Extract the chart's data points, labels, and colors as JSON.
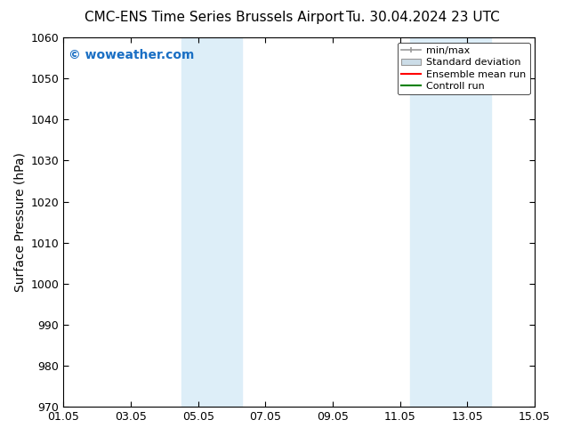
{
  "title_left": "CMC-ENS Time Series Brussels Airport",
  "title_right": "Tu. 30.04.2024 23 UTC",
  "ylabel": "Surface Pressure (hPa)",
  "ylim": [
    970,
    1060
  ],
  "yticks": [
    970,
    980,
    990,
    1000,
    1010,
    1020,
    1030,
    1040,
    1050,
    1060
  ],
  "xlim_start": 0.0,
  "xlim_end": 14.0,
  "xtick_positions": [
    0,
    2,
    4,
    6,
    8,
    10,
    12,
    14
  ],
  "xtick_labels": [
    "01.05",
    "03.05",
    "05.05",
    "07.05",
    "09.05",
    "11.05",
    "13.05",
    "15.05"
  ],
  "shaded_bands": [
    {
      "x_start": 3.5,
      "x_end": 5.3,
      "color": "#ddeef8"
    },
    {
      "x_start": 10.3,
      "x_end": 12.7,
      "color": "#ddeef8"
    }
  ],
  "watermark_text": "© woweather.com",
  "watermark_color": "#1a6fc4",
  "background_color": "#ffffff",
  "legend_labels": [
    "min/max",
    "Standard deviation",
    "Ensemble mean run",
    "Controll run"
  ],
  "legend_colors": [
    "#999999",
    "#ccdde8",
    "#ff0000",
    "#008000"
  ],
  "title_fontsize": 11,
  "axis_label_fontsize": 10,
  "tick_fontsize": 9,
  "legend_fontsize": 8
}
